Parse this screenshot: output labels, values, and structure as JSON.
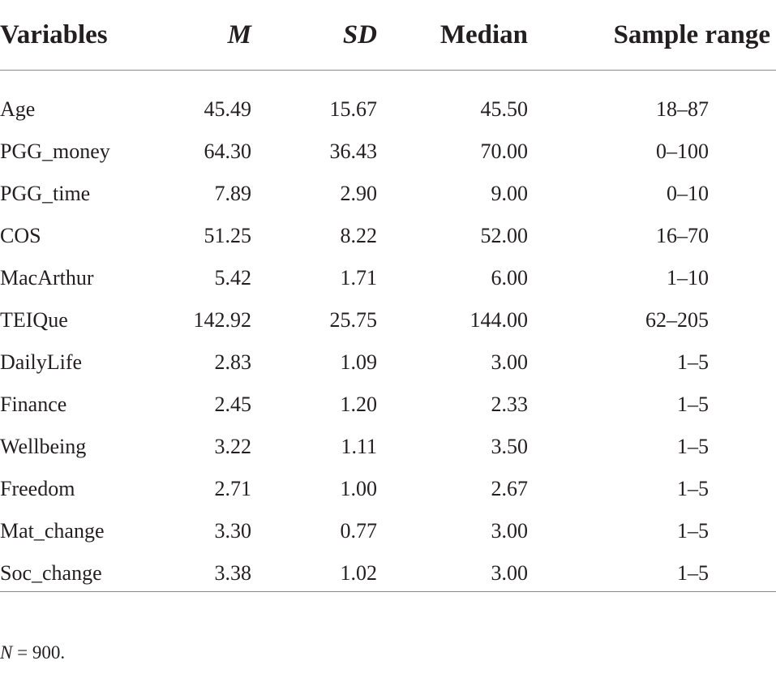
{
  "table": {
    "headers": {
      "variables": "Variables",
      "m": "M",
      "sd": "SD",
      "median": "Median",
      "sample_range": "Sample range"
    },
    "rows": [
      {
        "variable": "Age",
        "m": "45.49",
        "sd": "15.67",
        "median": "45.50",
        "range": "18–87"
      },
      {
        "variable": "PGG_money",
        "m": "64.30",
        "sd": "36.43",
        "median": "70.00",
        "range": "0–100"
      },
      {
        "variable": "PGG_time",
        "m": "7.89",
        "sd": "2.90",
        "median": "9.00",
        "range": "0–10"
      },
      {
        "variable": "COS",
        "m": "51.25",
        "sd": "8.22",
        "median": "52.00",
        "range": "16–70"
      },
      {
        "variable": "MacArthur",
        "m": "5.42",
        "sd": "1.71",
        "median": "6.00",
        "range": "1–10"
      },
      {
        "variable": "TEIQue",
        "m": "142.92",
        "sd": "25.75",
        "median": "144.00",
        "range": "62–205"
      },
      {
        "variable": "DailyLife",
        "m": "2.83",
        "sd": "1.09",
        "median": "3.00",
        "range": "1–5"
      },
      {
        "variable": "Finance",
        "m": "2.45",
        "sd": "1.20",
        "median": "2.33",
        "range": "1–5"
      },
      {
        "variable": "Wellbeing",
        "m": "3.22",
        "sd": "1.11",
        "median": "3.50",
        "range": "1–5"
      },
      {
        "variable": "Freedom",
        "m": "2.71",
        "sd": "1.00",
        "median": "2.67",
        "range": "1–5"
      },
      {
        "variable": "Mat_change",
        "m": "3.30",
        "sd": "0.77",
        "median": "3.00",
        "range": "1–5"
      },
      {
        "variable": "Soc_change",
        "m": "3.38",
        "sd": "1.02",
        "median": "3.00",
        "range": "1–5"
      }
    ]
  },
  "note": {
    "symbol": "N",
    "text": " = 900."
  }
}
